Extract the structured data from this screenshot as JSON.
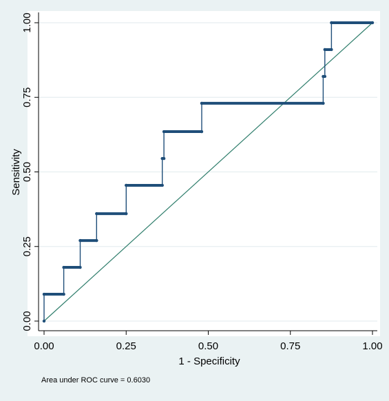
{
  "chart_data": {
    "type": "line",
    "xlabel": "1 - Specificity",
    "ylabel": "Sensitivity",
    "xlim": [
      0,
      1
    ],
    "ylim": [
      0,
      1
    ],
    "x_ticks": [
      "0.00",
      "0.25",
      "0.50",
      "0.75",
      "1.00"
    ],
    "y_ticks": [
      "0.00",
      "0.25",
      "0.50",
      "0.75",
      "1.00"
    ],
    "grid": true,
    "note": "Area under ROC curve = 0.6030",
    "series": [
      {
        "color": "#1f4e79",
        "style": "step",
        "x": [
          0.0,
          0.0,
          0.06,
          0.06,
          0.11,
          0.11,
          0.16,
          0.16,
          0.25,
          0.25,
          0.36,
          0.36,
          0.365,
          0.365,
          0.48,
          0.48,
          0.85,
          0.85,
          0.855,
          0.855,
          0.875,
          0.875,
          1.0
        ],
        "y": [
          0.0,
          0.09,
          0.09,
          0.18,
          0.18,
          0.27,
          0.27,
          0.36,
          0.36,
          0.455,
          0.455,
          0.545,
          0.545,
          0.635,
          0.635,
          0.73,
          0.73,
          0.82,
          0.82,
          0.91,
          0.91,
          1.0,
          1.0
        ]
      },
      {
        "color": "#2e7d6b",
        "style": "reference",
        "x": [
          0,
          1
        ],
        "y": [
          0,
          1
        ]
      }
    ]
  }
}
